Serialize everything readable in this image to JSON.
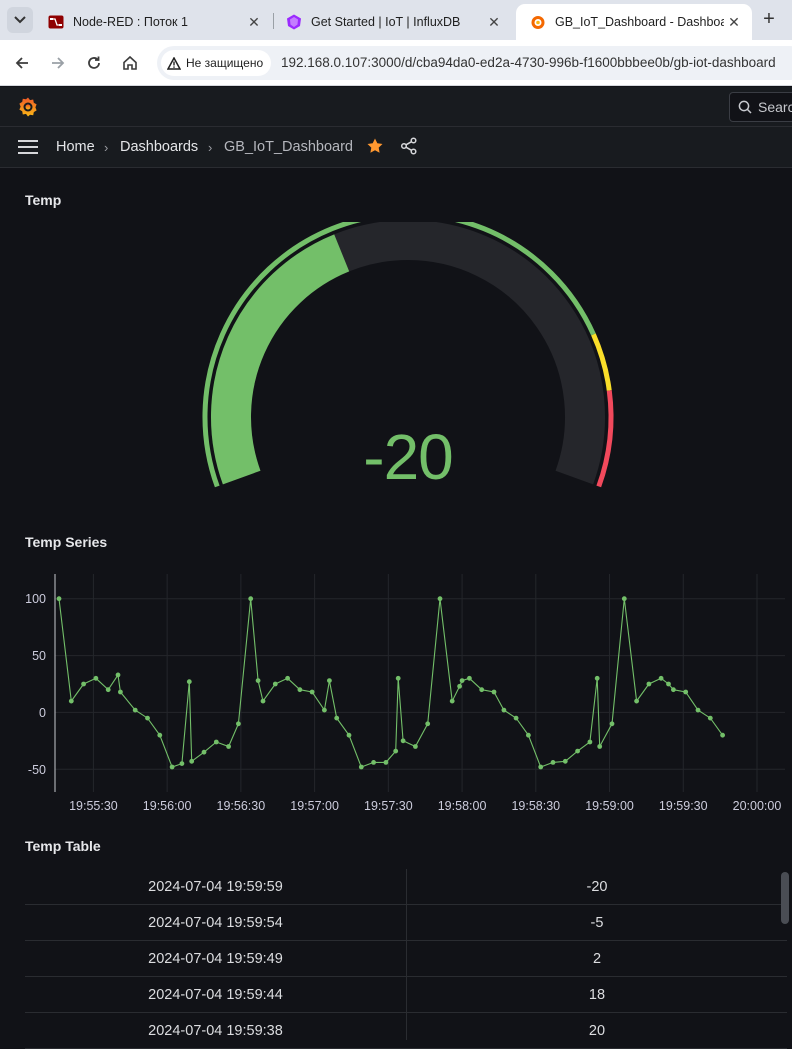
{
  "browser": {
    "tabs": [
      {
        "title": "Node-RED : Поток 1",
        "active": false,
        "icon": "node-red-icon"
      },
      {
        "title": "Get Started | IoT | InfluxDB",
        "active": false,
        "icon": "influxdb-icon"
      },
      {
        "title": "GB_IoT_Dashboard - Dashboards - Grafana",
        "active": true,
        "icon": "grafana-icon"
      }
    ],
    "security_label": "Не защищено",
    "url": "192.168.0.107:3000/d/cba94da0-ed2a-4730-996b-f1600bbbee0b/gb-iot-dashboard"
  },
  "grafana": {
    "search_label": "Search",
    "breadcrumbs": {
      "home": "Home",
      "dashboards": "Dashboards",
      "current": "GB_IoT_Dashboard"
    },
    "colors": {
      "green": "#73bf69",
      "yellow": "#fade2a",
      "red": "#f2495c",
      "starred": "#ff9830"
    }
  },
  "panels": {
    "gauge": {
      "title": "Temp",
      "value": "-20",
      "min": -100,
      "max": 100,
      "current": -20,
      "thresholds": [
        {
          "from": -100,
          "to": 60,
          "color": "#73bf69"
        },
        {
          "from": 60,
          "to": 75,
          "color": "#fade2a"
        },
        {
          "from": 75,
          "to": 100,
          "color": "#f2495c"
        }
      ]
    },
    "series": {
      "title": "Temp Series"
    },
    "table": {
      "title": "Temp Table",
      "rows": [
        {
          "time": "2024-07-04 19:59:59",
          "value": "-20"
        },
        {
          "time": "2024-07-04 19:59:54",
          "value": "-5"
        },
        {
          "time": "2024-07-04 19:59:49",
          "value": "2"
        },
        {
          "time": "2024-07-04 19:59:44",
          "value": "18"
        },
        {
          "time": "2024-07-04 19:59:38",
          "value": "20"
        }
      ]
    }
  },
  "chart_data": {
    "type": "line",
    "title": "Temp Series",
    "x_tick_labels": [
      "19:55:30",
      "19:56:00",
      "19:56:30",
      "19:57:00",
      "19:57:30",
      "19:58:00",
      "19:58:30",
      "19:59:00",
      "19:59:30",
      "20:00:00"
    ],
    "y_ticks": [
      100,
      50,
      0,
      -50
    ],
    "ylim": [
      -70,
      120
    ],
    "grid": true,
    "series": [
      {
        "color": "#73bf69",
        "points": [
          [
            "19:55:16",
            100
          ],
          [
            "19:55:21",
            10
          ],
          [
            "19:55:26",
            25
          ],
          [
            "19:55:31",
            30
          ],
          [
            "19:55:36",
            20
          ],
          [
            "19:55:40",
            33
          ],
          [
            "19:55:41",
            18
          ],
          [
            "19:55:47",
            2
          ],
          [
            "19:55:52",
            -5
          ],
          [
            "19:55:57",
            -20
          ],
          [
            "19:56:02",
            -48
          ],
          [
            "19:56:06",
            -45
          ],
          [
            "19:56:09",
            27
          ],
          [
            "19:56:10",
            -43
          ],
          [
            "19:56:15",
            -35
          ],
          [
            "19:56:20",
            -26
          ],
          [
            "19:56:25",
            -30
          ],
          [
            "19:56:29",
            -10
          ],
          [
            "19:56:34",
            100
          ],
          [
            "19:56:37",
            28
          ],
          [
            "19:56:39",
            10
          ],
          [
            "19:56:44",
            25
          ],
          [
            "19:56:49",
            30
          ],
          [
            "19:56:54",
            20
          ],
          [
            "19:56:59",
            18
          ],
          [
            "19:57:04",
            2
          ],
          [
            "19:57:06",
            28
          ],
          [
            "19:57:09",
            -5
          ],
          [
            "19:57:14",
            -20
          ],
          [
            "19:57:19",
            -48
          ],
          [
            "19:57:24",
            -44
          ],
          [
            "19:57:29",
            -44
          ],
          [
            "19:57:33",
            -34
          ],
          [
            "19:57:34",
            30
          ],
          [
            "19:57:36",
            -25
          ],
          [
            "19:57:41",
            -30
          ],
          [
            "19:57:46",
            -10
          ],
          [
            "19:57:51",
            100
          ],
          [
            "19:57:56",
            10
          ],
          [
            "19:57:59",
            23
          ],
          [
            "19:58:00",
            28
          ],
          [
            "19:58:03",
            30
          ],
          [
            "19:58:08",
            20
          ],
          [
            "19:58:13",
            18
          ],
          [
            "19:58:17",
            2
          ],
          [
            "19:58:22",
            -5
          ],
          [
            "19:58:27",
            -20
          ],
          [
            "19:58:32",
            -48
          ],
          [
            "19:58:37",
            -44
          ],
          [
            "19:58:42",
            -43
          ],
          [
            "19:58:47",
            -34
          ],
          [
            "19:58:52",
            -26
          ],
          [
            "19:58:55",
            30
          ],
          [
            "19:58:56",
            -30
          ],
          [
            "19:59:01",
            -10
          ],
          [
            "19:59:06",
            100
          ],
          [
            "19:59:11",
            10
          ],
          [
            "19:59:16",
            25
          ],
          [
            "19:59:21",
            30
          ],
          [
            "19:59:24",
            25
          ],
          [
            "19:59:26",
            20
          ],
          [
            "19:59:31",
            18
          ],
          [
            "19:59:36",
            2
          ],
          [
            "19:59:41",
            -5
          ],
          [
            "19:59:46",
            -20
          ]
        ]
      }
    ]
  }
}
